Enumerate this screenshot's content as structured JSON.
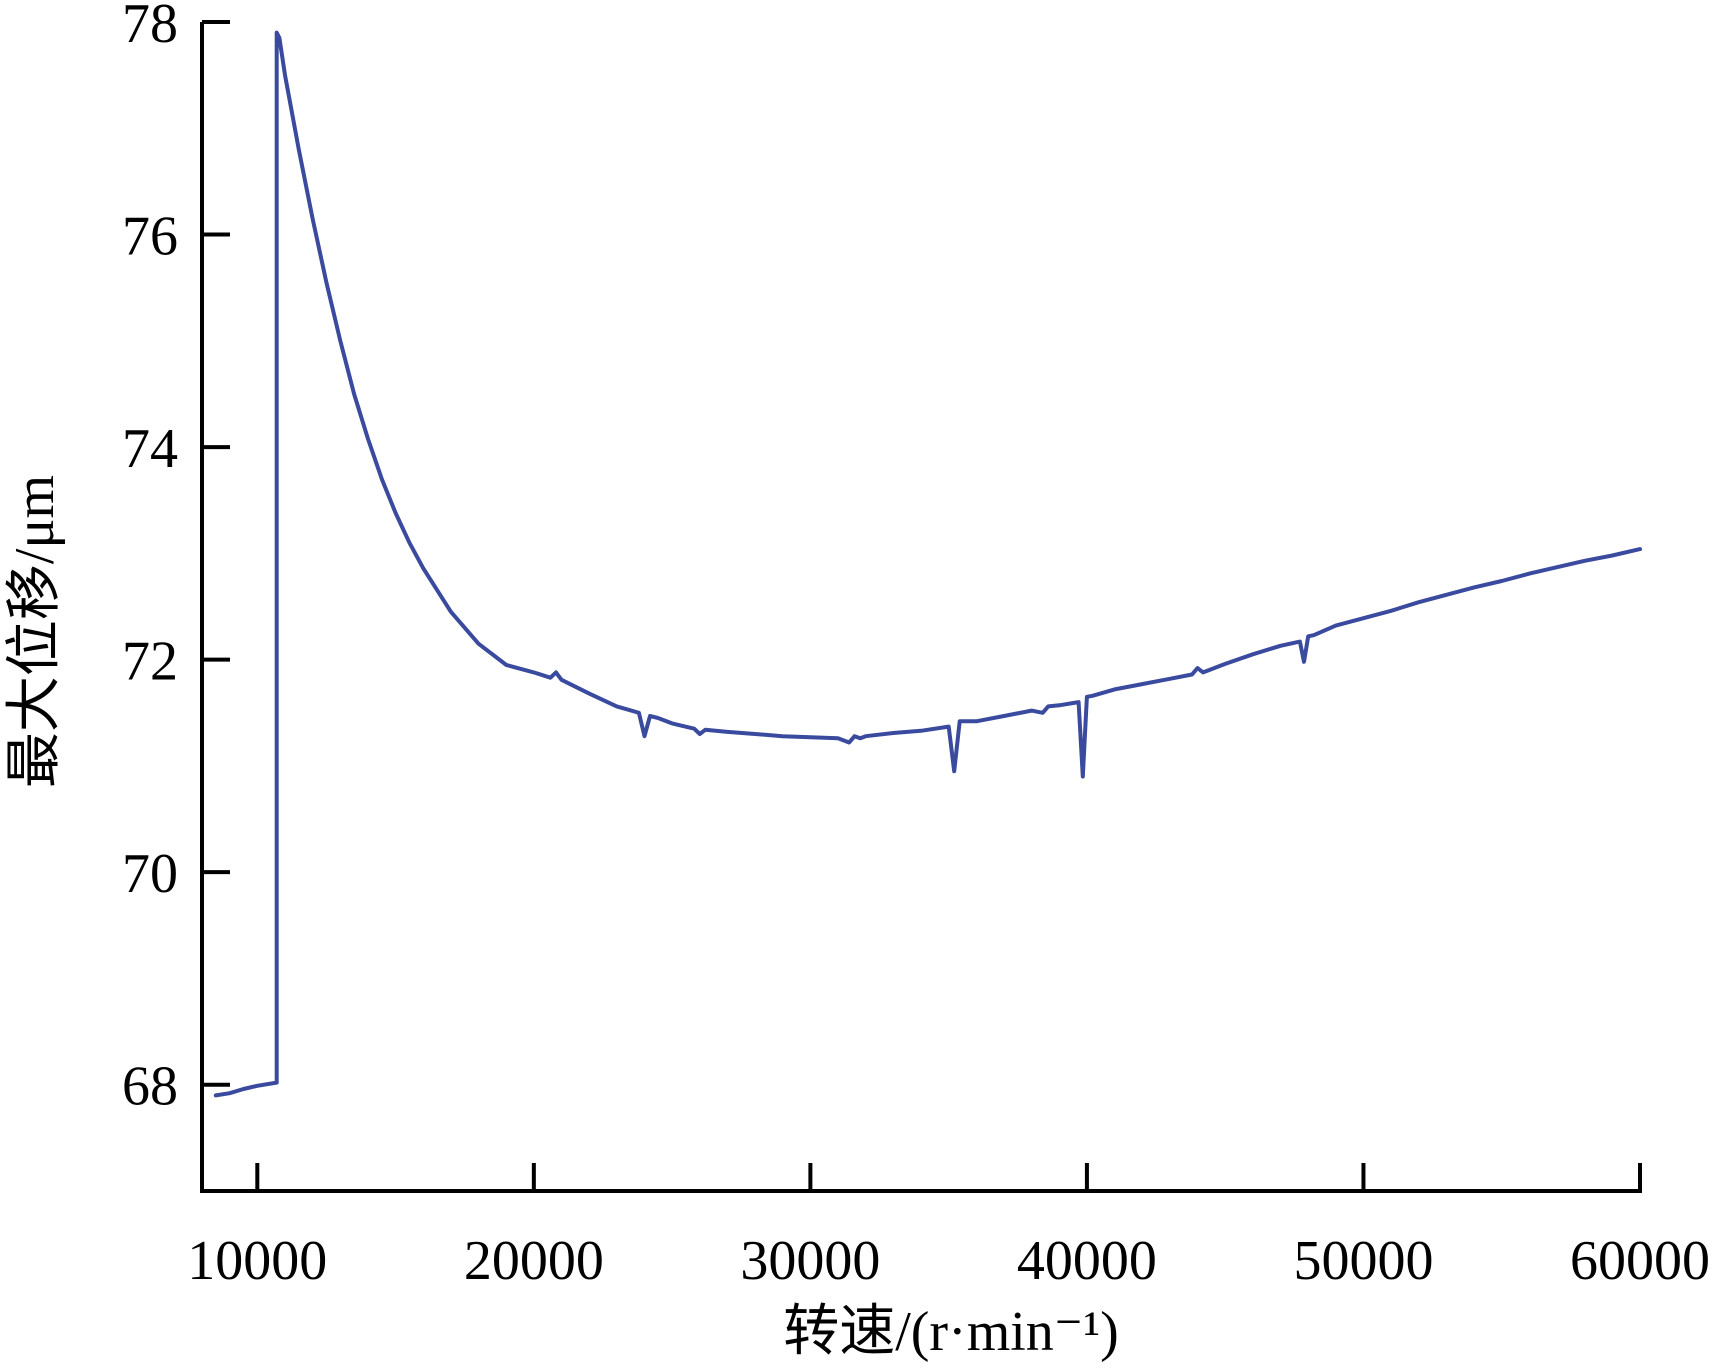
{
  "chart_data": {
    "type": "line",
    "title": "",
    "xlabel": "转速/(r·min⁻¹)",
    "ylabel": "最大位移/μm",
    "xlim": [
      8000,
      60000
    ],
    "ylim": [
      67,
      78
    ],
    "xticks": [
      10000,
      20000,
      30000,
      40000,
      50000,
      60000
    ],
    "yticks": [
      68,
      70,
      72,
      74,
      76,
      78
    ],
    "grid": false,
    "legend": "none",
    "colors": {
      "line": "#3a4a9e",
      "axis": "#000000"
    },
    "series": [
      {
        "x": [
          8500,
          9000,
          9500,
          10000,
          10700,
          10700,
          10800,
          11000,
          11500,
          12000,
          12500,
          13000,
          13500,
          14000,
          14500,
          15000,
          15500,
          16000,
          17000,
          18000,
          19000,
          20000,
          20600,
          20800,
          21000,
          22000,
          23000,
          23800,
          24000,
          24200,
          24500,
          25000,
          25800,
          26000,
          26200,
          27000,
          28000,
          29000,
          30000,
          31000,
          31400,
          31600,
          31800,
          32000,
          33000,
          34000,
          35000,
          35200,
          35400,
          35600,
          36000,
          37000,
          38000,
          38400,
          38600,
          39000,
          39700,
          39850,
          40000,
          40200,
          41000,
          42000,
          43000,
          43800,
          44000,
          44200,
          45000,
          46000,
          47000,
          47700,
          47850,
          48000,
          48200,
          49000,
          50000,
          51000,
          52000,
          53000,
          54000,
          55000,
          56000,
          57000,
          58000,
          59000,
          60000
        ],
        "y": [
          67.9,
          67.92,
          67.96,
          67.99,
          68.02,
          77.9,
          77.85,
          77.5,
          76.8,
          76.15,
          75.55,
          75.0,
          74.5,
          74.08,
          73.7,
          73.38,
          73.1,
          72.86,
          72.45,
          72.15,
          71.95,
          71.88,
          71.83,
          71.88,
          71.81,
          71.68,
          71.56,
          71.5,
          71.28,
          71.47,
          71.45,
          71.4,
          71.35,
          71.3,
          71.34,
          71.32,
          71.3,
          71.28,
          71.27,
          71.26,
          71.22,
          71.28,
          71.26,
          71.28,
          71.31,
          71.33,
          71.37,
          70.95,
          71.42,
          71.42,
          71.42,
          71.47,
          71.52,
          71.5,
          71.56,
          71.57,
          71.6,
          70.9,
          71.65,
          71.66,
          71.72,
          71.77,
          71.82,
          71.86,
          71.92,
          71.88,
          71.96,
          72.05,
          72.13,
          72.17,
          71.98,
          72.22,
          72.23,
          72.32,
          72.39,
          72.46,
          72.54,
          72.61,
          72.68,
          72.74,
          72.81,
          72.87,
          72.93,
          72.98,
          73.04
        ]
      }
    ]
  }
}
